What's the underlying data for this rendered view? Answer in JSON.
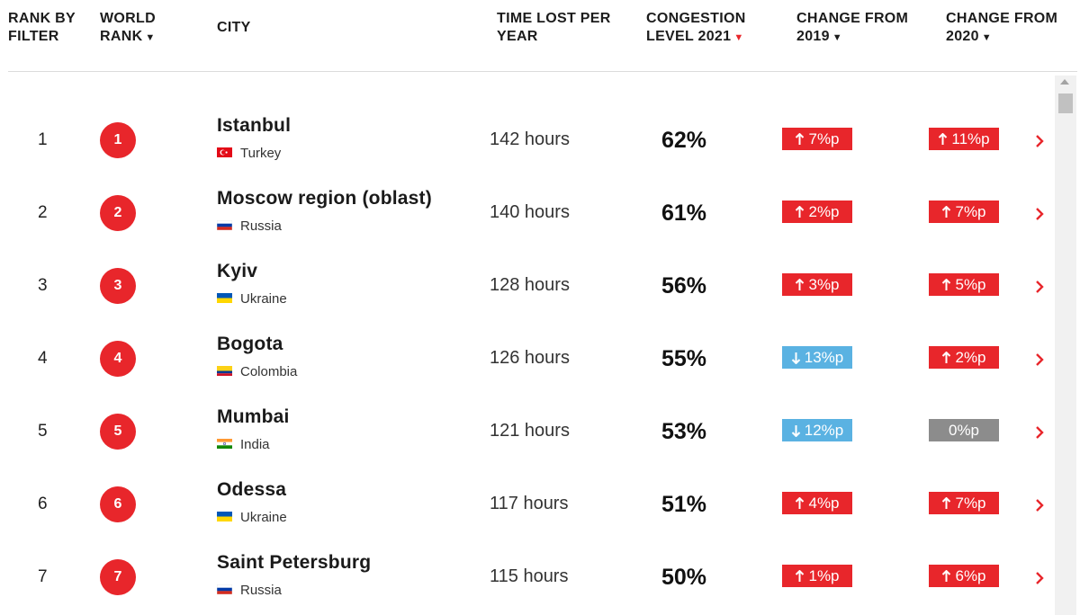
{
  "header": {
    "rank_by_filter": [
      "RANK BY",
      "FILTER"
    ],
    "world_rank": [
      "WORLD",
      "RANK"
    ],
    "city": "CITY",
    "time_lost": [
      "TIME LOST PER",
      "YEAR"
    ],
    "congestion": [
      "CONGESTION",
      "LEVEL 2021"
    ],
    "change_2019": [
      "CHANGE FROM",
      "2019"
    ],
    "change_2020": [
      "CHANGE FROM",
      "2020"
    ],
    "sort_arrow": "▼"
  },
  "rows": [
    {
      "rank": "1",
      "world_rank": "1",
      "city": "Istanbul",
      "country": "Turkey",
      "flag": "turkey",
      "hours": "142 hours",
      "congestion": "62%",
      "change_2019": {
        "dir": "up",
        "value": "7%p"
      },
      "change_2020": {
        "dir": "up",
        "value": "11%p"
      }
    },
    {
      "rank": "2",
      "world_rank": "2",
      "city": "Moscow region (oblast)",
      "country": "Russia",
      "flag": "russia",
      "hours": "140 hours",
      "congestion": "61%",
      "change_2019": {
        "dir": "up",
        "value": "2%p"
      },
      "change_2020": {
        "dir": "up",
        "value": "7%p"
      }
    },
    {
      "rank": "3",
      "world_rank": "3",
      "city": "Kyiv",
      "country": "Ukraine",
      "flag": "ukraine",
      "hours": "128 hours",
      "congestion": "56%",
      "change_2019": {
        "dir": "up",
        "value": "3%p"
      },
      "change_2020": {
        "dir": "up",
        "value": "5%p"
      }
    },
    {
      "rank": "4",
      "world_rank": "4",
      "city": "Bogota",
      "country": "Colombia",
      "flag": "colombia",
      "hours": "126 hours",
      "congestion": "55%",
      "change_2019": {
        "dir": "down",
        "value": "13%p"
      },
      "change_2020": {
        "dir": "up",
        "value": "2%p"
      }
    },
    {
      "rank": "5",
      "world_rank": "5",
      "city": "Mumbai",
      "country": "India",
      "flag": "india",
      "hours": "121 hours",
      "congestion": "53%",
      "change_2019": {
        "dir": "down",
        "value": "12%p"
      },
      "change_2020": {
        "dir": "zero",
        "value": "0%p"
      }
    },
    {
      "rank": "6",
      "world_rank": "6",
      "city": "Odessa",
      "country": "Ukraine",
      "flag": "ukraine",
      "hours": "117 hours",
      "congestion": "51%",
      "change_2019": {
        "dir": "up",
        "value": "4%p"
      },
      "change_2020": {
        "dir": "up",
        "value": "7%p"
      }
    },
    {
      "rank": "7",
      "world_rank": "7",
      "city": "Saint Petersburg",
      "country": "Russia",
      "flag": "russia",
      "hours": "115 hours",
      "congestion": "50%",
      "change_2019": {
        "dir": "up",
        "value": "1%p"
      },
      "change_2020": {
        "dir": "up",
        "value": "6%p"
      }
    }
  ],
  "colors": {
    "accent_red": "#e8262b",
    "down_blue": "#5ab2e2",
    "neutral_gray": "#8c8c8c"
  },
  "icons": {
    "up": "arrow-up-icon",
    "down": "arrow-down-icon",
    "row_action": "chevron-right-icon"
  }
}
